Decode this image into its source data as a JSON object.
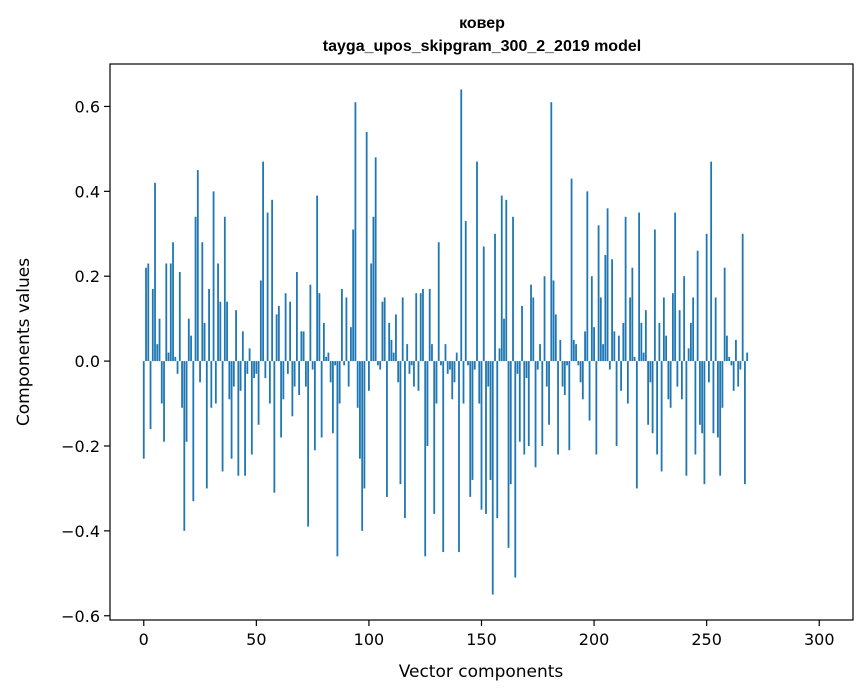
{
  "chart_data": {
    "type": "bar",
    "title": "ковер",
    "subtitle": "tayga_upos_skipgram_300_2_2019 model",
    "xlabel": "Vector components",
    "ylabel": "Components values",
    "xlim": [
      -15,
      315
    ],
    "ylim": [
      -0.61,
      0.7
    ],
    "xticks": [
      0,
      50,
      100,
      150,
      200,
      250,
      300
    ],
    "xtick_labels": [
      "0",
      "50",
      "100",
      "150",
      "200",
      "250",
      "300"
    ],
    "yticks": [
      -0.6,
      -0.4,
      -0.2,
      0.0,
      0.2,
      0.4,
      0.6
    ],
    "ytick_labels": [
      "−0.6",
      "−0.4",
      "−0.2",
      "0.0",
      "0.2",
      "0.4",
      "0.6"
    ],
    "grid": false,
    "bar_color": "#1f77b4",
    "values": [
      -0.23,
      0.22,
      0.23,
      -0.16,
      0.17,
      0.42,
      0.04,
      0.1,
      -0.1,
      -0.19,
      0.23,
      0.02,
      0.23,
      0.28,
      0.01,
      -0.03,
      0.21,
      -0.11,
      -0.4,
      -0.19,
      0.1,
      0.06,
      -0.33,
      0.34,
      0.45,
      -0.05,
      0.28,
      0.09,
      -0.3,
      0.17,
      -0.11,
      0.4,
      -0.1,
      0.23,
      0.14,
      -0.26,
      0.34,
      0.14,
      -0.09,
      -0.23,
      -0.06,
      0.12,
      -0.27,
      -0.07,
      0.07,
      -0.27,
      -0.03,
      0.03,
      -0.22,
      -0.04,
      -0.03,
      -0.15,
      0.19,
      0.47,
      -0.04,
      0.35,
      -0.1,
      0.38,
      -0.31,
      0.11,
      0.13,
      -0.18,
      -0.09,
      0.16,
      -0.03,
      0.14,
      -0.13,
      -0.06,
      0.21,
      -0.08,
      0.07,
      0.07,
      -0.06,
      -0.39,
      0.18,
      -0.02,
      -0.21,
      0.39,
      0.16,
      -0.18,
      0.09,
      0.01,
      0.02,
      -0.05,
      -0.17,
      -0.01,
      -0.46,
      -0.1,
      0.17,
      -0.01,
      0.15,
      -0.06,
      0.08,
      0.31,
      0.61,
      -0.11,
      -0.23,
      -0.4,
      -0.3,
      0.54,
      -0.07,
      0.23,
      0.34,
      0.48,
      -0.01,
      -0.02,
      0.14,
      0.15,
      -0.32,
      0.09,
      0.05,
      0.02,
      0.11,
      -0.05,
      -0.29,
      0.15,
      -0.37,
      0.04,
      -0.03,
      -0.01,
      -0.06,
      0.16,
      -0.07,
      0.16,
      0.17,
      -0.46,
      -0.2,
      0.17,
      0.04,
      -0.36,
      -0.1,
      0.28,
      -0.01,
      -0.45,
      0.04,
      -0.03,
      -0.02,
      -0.09,
      -0.05,
      0.02,
      -0.45,
      0.64,
      -0.1,
      0.33,
      -0.01,
      -0.32,
      -0.28,
      -0.02,
      0.47,
      -0.1,
      -0.35,
      0.27,
      -0.36,
      -0.06,
      -0.28,
      -0.55,
      0.3,
      -0.37,
      0.03,
      0.39,
      0.1,
      0.38,
      -0.44,
      -0.29,
      0.34,
      -0.51,
      -0.03,
      -0.19,
      0.13,
      -0.22,
      -0.04,
      -0.2,
      0.18,
      0.15,
      -0.25,
      -0.02,
      0.04,
      -0.2,
      0.2,
      -0.06,
      -0.15,
      0.61,
      0.19,
      0.11,
      -0.22,
      0.05,
      -0.06,
      -0.08,
      -0.01,
      -0.21,
      0.43,
      0.05,
      0.04,
      -0.01,
      -0.05,
      -0.09,
      0.07,
      0.4,
      -0.14,
      0.2,
      0.08,
      -0.22,
      0.32,
      0.15,
      0.04,
      0.25,
      0.36,
      -0.02,
      0.24,
      0.07,
      -0.2,
      0.06,
      -0.07,
      0.09,
      0.34,
      -0.1,
      0.15,
      0.22,
      0.01,
      -0.3,
      0.35,
      0.09,
      0.02,
      0.12,
      -0.15,
      -0.05,
      -0.17,
      0.31,
      -0.22,
      0.09,
      -0.26,
      0.15,
      0.06,
      -0.09,
      -0.11,
      0.16,
      0.35,
      -0.06,
      0.12,
      -0.09,
      0.2,
      -0.27,
      0.03,
      0.09,
      0.15,
      -0.22,
      0.26,
      -0.15,
      -0.17,
      -0.29,
      0.3,
      -0.05,
      0.47,
      -0.17,
      0.15,
      -0.18,
      -0.27,
      -0.11,
      0.22,
      0.06,
      0.01,
      -0.01,
      -0.07,
      0.05,
      -0.06,
      -0.02,
      0.3,
      -0.29,
      0.02
    ]
  }
}
